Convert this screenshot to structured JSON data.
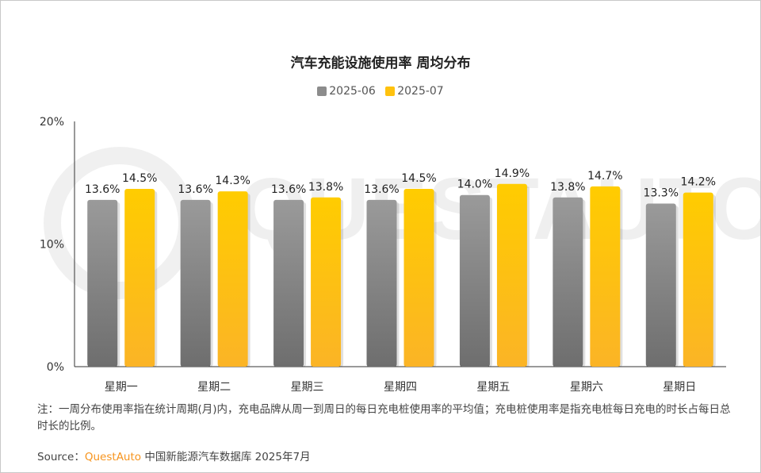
{
  "chart_data": {
    "type": "bar",
    "title": "汽车充能设施使用率 周均分布",
    "categories": [
      "星期一",
      "星期二",
      "星期三",
      "星期四",
      "星期五",
      "星期六",
      "星期日"
    ],
    "series": [
      {
        "name": "2025-06",
        "color": "#8c8c8c",
        "values": [
          13.6,
          13.6,
          13.6,
          13.6,
          14.0,
          13.8,
          13.3
        ],
        "labels": [
          "13.6%",
          "13.6%",
          "13.6%",
          "13.6%",
          "14.0%",
          "13.8%",
          "13.3%"
        ]
      },
      {
        "name": "2025-07",
        "color": "#ffc20e",
        "values": [
          14.5,
          14.3,
          13.8,
          14.5,
          14.9,
          14.7,
          14.2
        ],
        "labels": [
          "14.5%",
          "14.3%",
          "13.8%",
          "14.5%",
          "14.9%",
          "14.7%",
          "14.2%"
        ]
      }
    ],
    "yticks": [
      "0%",
      "10%",
      "20%"
    ],
    "ylim": [
      0,
      20
    ],
    "legend": "top-center",
    "grid": false
  },
  "note": "注：一周分布使用率指在统计周期(月)内，充电品牌从周一到周日的每日充电桩使用率的平均值；充电桩使用率是指充电桩每日充电的时长占每日总时长的比例。",
  "source": {
    "label": "Source：",
    "brand": "QuestAuto",
    "text": " 中国新能源汽车数据库 2025年7月"
  },
  "watermark": "QUESTAUTO"
}
